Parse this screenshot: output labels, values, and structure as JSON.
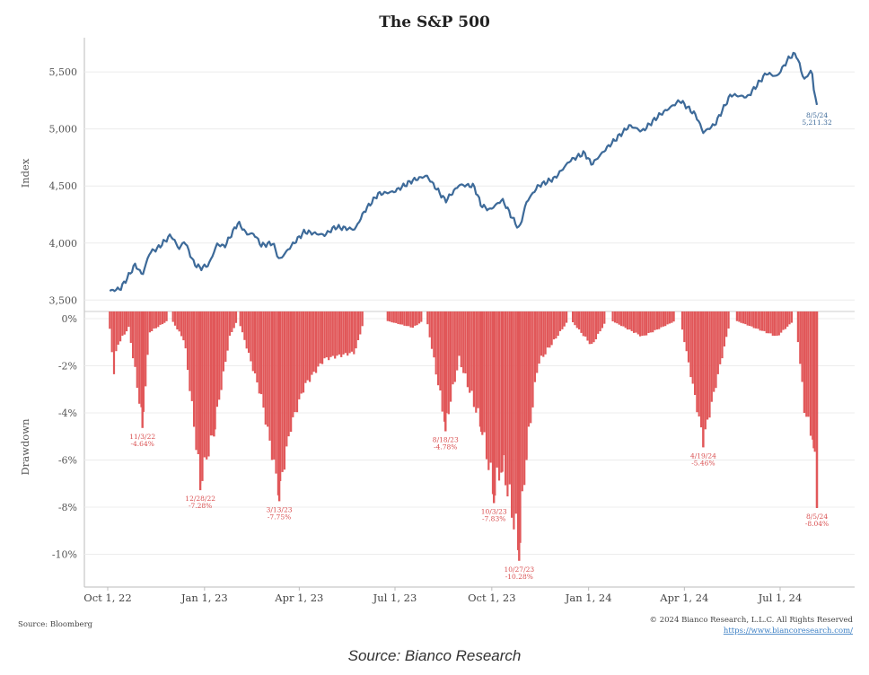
{
  "chart_data": [
    {
      "type": "line",
      "title": "The S&P 500",
      "ylabel": "Index",
      "ylim": [
        3400,
        5800
      ],
      "yticks": [
        "5,500",
        "5,000",
        "4,500",
        "4,000",
        "3,500"
      ],
      "ytick_values": [
        5500,
        5000,
        4500,
        4000,
        3500
      ],
      "series": [
        {
          "color": "#3d6a99",
          "points": [
            [
              "2022-10-03",
              3580
            ],
            [
              "2022-10-13",
              3600
            ],
            [
              "2022-10-20",
              3700
            ],
            [
              "2022-10-27",
              3810
            ],
            [
              "2022-11-03",
              3720
            ],
            [
              "2022-11-10",
              3920
            ],
            [
              "2022-11-17",
              3950
            ],
            [
              "2022-11-30",
              4070
            ],
            [
              "2022-12-08",
              3950
            ],
            [
              "2022-12-13",
              4020
            ],
            [
              "2022-12-22",
              3820
            ],
            [
              "2022-12-28",
              3780
            ],
            [
              "2023-01-05",
              3810
            ],
            [
              "2023-01-13",
              3990
            ],
            [
              "2023-01-20",
              3970
            ],
            [
              "2023-02-02",
              4180
            ],
            [
              "2023-02-10",
              4080
            ],
            [
              "2023-02-17",
              4080
            ],
            [
              "2023-02-24",
              3980
            ],
            [
              "2023-03-07",
              4000
            ],
            [
              "2023-03-13",
              3850
            ],
            [
              "2023-03-24",
              3970
            ],
            [
              "2023-04-06",
              4100
            ],
            [
              "2023-04-25",
              4070
            ],
            [
              "2023-05-05",
              4140
            ],
            [
              "2023-05-24",
              4120
            ],
            [
              "2023-06-02",
              4280
            ],
            [
              "2023-06-15",
              4430
            ],
            [
              "2023-06-30",
              4450
            ],
            [
              "2023-07-18",
              4550
            ],
            [
              "2023-07-31",
              4590
            ],
            [
              "2023-08-10",
              4470
            ],
            [
              "2023-08-18",
              4370
            ],
            [
              "2023-08-31",
              4510
            ],
            [
              "2023-09-14",
              4500
            ],
            [
              "2023-09-21",
              4330
            ],
            [
              "2023-09-29",
              4290
            ],
            [
              "2023-10-11",
              4380
            ],
            [
              "2023-10-20",
              4230
            ],
            [
              "2023-10-27",
              4120
            ],
            [
              "2023-11-03",
              4360
            ],
            [
              "2023-11-14",
              4500
            ],
            [
              "2023-11-30",
              4570
            ],
            [
              "2023-12-14",
              4720
            ],
            [
              "2023-12-28",
              4790
            ],
            [
              "2024-01-04",
              4690
            ],
            [
              "2024-01-19",
              4840
            ],
            [
              "2024-02-09",
              5030
            ],
            [
              "2024-02-21",
              4980
            ],
            [
              "2024-03-08",
              5120
            ],
            [
              "2024-03-28",
              5250
            ],
            [
              "2024-04-12",
              5120
            ],
            [
              "2024-04-19",
              4970
            ],
            [
              "2024-04-30",
              5040
            ],
            [
              "2024-05-15",
              5300
            ],
            [
              "2024-05-31",
              5280
            ],
            [
              "2024-06-18",
              5490
            ],
            [
              "2024-06-28",
              5460
            ],
            [
              "2024-07-10",
              5630
            ],
            [
              "2024-07-16",
              5660
            ],
            [
              "2024-07-24",
              5430
            ],
            [
              "2024-07-31",
              5520
            ],
            [
              "2024-08-02",
              5346
            ],
            [
              "2024-08-05",
              5211
            ]
          ]
        }
      ],
      "annotations": [
        {
          "date": "8/5/24",
          "value": "5,211.32"
        }
      ]
    },
    {
      "type": "bar",
      "ylabel": "Drawdown",
      "ylim": [
        -11.5,
        0
      ],
      "yticks": [
        "0%",
        "-2%",
        "-4%",
        "-6%",
        "-8%",
        "-10%"
      ],
      "ytick_values": [
        0,
        -2,
        -4,
        -6,
        -8,
        -10
      ],
      "color": "#e15759",
      "drawdown_profile": [
        [
          "2022-10-03",
          -0.5
        ],
        [
          "2022-10-07",
          -2.4
        ],
        [
          "2022-10-10",
          -1.2
        ],
        [
          "2022-10-21",
          -0.4
        ],
        [
          "2022-11-03",
          -4.64
        ],
        [
          "2022-11-10",
          -0.6
        ],
        [
          "2022-11-30",
          0
        ],
        [
          "2022-12-13",
          -1.0
        ],
        [
          "2022-12-28",
          -7.28
        ],
        [
          "2023-01-10",
          -5.0
        ],
        [
          "2023-01-25",
          -0.8
        ],
        [
          "2023-02-02",
          0
        ],
        [
          "2023-02-24",
          -3.5
        ],
        [
          "2023-03-13",
          -7.75
        ],
        [
          "2023-03-24",
          -4.8
        ],
        [
          "2023-04-06",
          -3.0
        ],
        [
          "2023-04-25",
          -1.8
        ],
        [
          "2023-05-24",
          -1.5
        ],
        [
          "2023-06-02",
          0
        ],
        [
          "2023-06-15",
          0
        ],
        [
          "2023-07-18",
          -0.4
        ],
        [
          "2023-07-31",
          0
        ],
        [
          "2023-08-18",
          -4.78
        ],
        [
          "2023-08-31",
          -1.8
        ],
        [
          "2023-09-21",
          -4.8
        ],
        [
          "2023-10-03",
          -7.83
        ],
        [
          "2023-10-11",
          -6.5
        ],
        [
          "2023-10-27",
          -10.28
        ],
        [
          "2023-11-03",
          -6.0
        ],
        [
          "2023-11-14",
          -2.0
        ],
        [
          "2023-12-14",
          0
        ],
        [
          "2024-01-04",
          -1.2
        ],
        [
          "2024-01-19",
          0
        ],
        [
          "2024-02-21",
          -0.8
        ],
        [
          "2024-03-28",
          0
        ],
        [
          "2024-04-19",
          -5.46
        ],
        [
          "2024-05-15",
          0
        ],
        [
          "2024-06-28",
          -0.8
        ],
        [
          "2024-07-16",
          0
        ],
        [
          "2024-07-24",
          -4.0
        ],
        [
          "2024-08-02",
          -5.5
        ],
        [
          "2024-08-05",
          -8.04
        ]
      ],
      "annotations": [
        {
          "date": "11/3/22",
          "value": "-4.64%"
        },
        {
          "date": "12/28/22",
          "value": "-7.28%"
        },
        {
          "date": "3/13/23",
          "value": "-7.75%"
        },
        {
          "date": "8/18/23",
          "value": "-4.78%"
        },
        {
          "date": "10/3/23",
          "value": "-7.83%"
        },
        {
          "date": "10/27/23",
          "value": "-10.28%"
        },
        {
          "date": "4/19/24",
          "value": "-5.46%"
        },
        {
          "date": "8/5/24",
          "value": "-8.04%"
        }
      ]
    }
  ],
  "xaxis": {
    "ticks": [
      "Oct 1, 22",
      "Jan 1, 23",
      "Apr 1, 23",
      "Jul 1, 23",
      "Oct 1, 23",
      "Jan 1, 24",
      "Apr 1, 24",
      "Jul 1, 24"
    ],
    "tick_dates": [
      "2022-10-01",
      "2023-01-01",
      "2023-04-01",
      "2023-07-01",
      "2023-10-01",
      "2024-01-01",
      "2024-04-01",
      "2024-07-01"
    ]
  },
  "footer": {
    "source": "Source: Bloomberg",
    "copyright": "© 2024 Bianco Research, L.L.C. All Rights Reserved",
    "url": "https://www.biancoresearch.com/"
  },
  "caption": "Source: Bianco Research"
}
